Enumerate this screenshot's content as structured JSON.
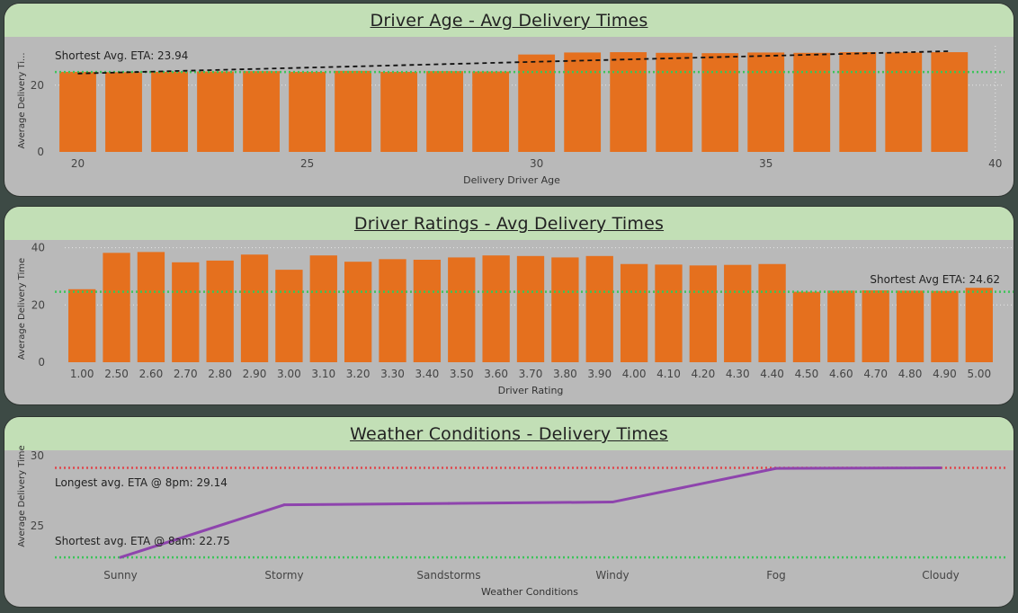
{
  "colors": {
    "bar": "#e5701e",
    "line": "#8e44ad",
    "min_line": "#3cc45a",
    "max_line": "#e0474c",
    "title_bg": "#c2dfb6",
    "panel_bg": "#b9b9b9"
  },
  "chart_data": [
    {
      "type": "bar",
      "title": "Driver Age - Avg Delivery Times",
      "xlabel": "Delivery Driver Age",
      "ylabel": "Average Delivery Ti...",
      "x": [
        20,
        21,
        22,
        23,
        24,
        25,
        26,
        27,
        28,
        29,
        30,
        31,
        32,
        33,
        34,
        35,
        36,
        37,
        38,
        39
      ],
      "values": [
        24.0,
        23.9,
        24.0,
        24.1,
        24.2,
        24.0,
        24.3,
        24.0,
        24.2,
        24.1,
        29.2,
        29.8,
        29.9,
        29.7,
        29.6,
        29.8,
        29.7,
        29.9,
        29.8,
        29.9
      ],
      "xlim": [
        19.5,
        40.2
      ],
      "ylim": [
        0,
        31.8
      ],
      "xticks": [
        20,
        25,
        30,
        35,
        40
      ],
      "yticks": [
        0,
        20
      ],
      "trendline": [
        [
          20,
          23.5
        ],
        [
          39,
          30.2
        ]
      ],
      "reference_line": 23.94,
      "annotation": "Shortest Avg. ETA: 23.94",
      "grid": true
    },
    {
      "type": "bar",
      "title": "Driver Ratings - Avg Delivery Times",
      "xlabel": "Driver Rating",
      "ylabel": "Average Delivery Time",
      "categories": [
        "1.00",
        "2.50",
        "2.60",
        "2.70",
        "2.80",
        "2.90",
        "3.00",
        "3.10",
        "3.20",
        "3.30",
        "3.40",
        "3.50",
        "3.60",
        "3.70",
        "3.80",
        "3.90",
        "4.00",
        "4.10",
        "4.20",
        "4.30",
        "4.40",
        "4.50",
        "4.60",
        "4.70",
        "4.80",
        "4.90",
        "5.00"
      ],
      "values": [
        25.5,
        38.2,
        38.5,
        34.9,
        35.5,
        37.6,
        32.3,
        37.3,
        35.1,
        36.0,
        35.8,
        36.6,
        37.3,
        37.1,
        36.6,
        37.1,
        34.3,
        34.1,
        33.8,
        34.0,
        34.3,
        24.6,
        25.0,
        25.1,
        25.0,
        24.9,
        26.0
      ],
      "ylim": [
        0,
        40.5
      ],
      "yticks": [
        0,
        20,
        40
      ],
      "reference_line": 24.62,
      "annotation": "Shortest Avg ETA: 24.62",
      "grid": true
    },
    {
      "type": "line",
      "title": "Weather Conditions - Delivery Times",
      "xlabel": "Weather Conditions",
      "ylabel": "Average Delivery Time",
      "categories": [
        "Sunny",
        "Stormy",
        "Sandstorms",
        "Windy",
        "Fog",
        "Cloudy"
      ],
      "values": [
        22.75,
        26.5,
        26.6,
        26.7,
        29.1,
        29.14
      ],
      "ylim": [
        22.5,
        30.2
      ],
      "yticks": [
        25,
        30
      ],
      "max_line": 29.14,
      "min_line": 22.75,
      "max_annotation": "Longest avg. ETA @ 8pm: 29.14",
      "min_annotation": "Shortest avg. ETA @ 8am: 22.75"
    }
  ]
}
